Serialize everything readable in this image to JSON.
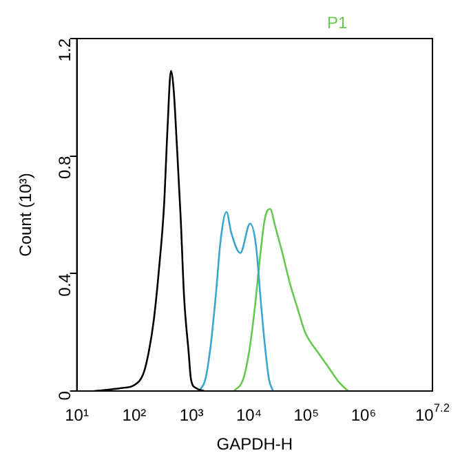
{
  "chart_data": {
    "type": "line",
    "xlabel": "GAPDH-H",
    "ylabel": "Count (10³)",
    "log": "x",
    "grid": false,
    "legend": "top",
    "marker": "none",
    "line_style": "solid",
    "xlim": [
      10,
      15848932
    ],
    "xticks": [
      {
        "value": 10,
        "label": "10¹"
      },
      {
        "value": 100,
        "label": "10²"
      },
      {
        "value": 1000,
        "label": "10³"
      },
      {
        "value": 10000,
        "label": "10⁴"
      },
      {
        "value": 100000,
        "label": "10⁵"
      },
      {
        "value": 1000000,
        "label": "10⁶"
      },
      {
        "value": 15848932,
        "label": "10$^{7.2}$"
      }
    ],
    "ylim": [
      0,
      1.2
    ],
    "yticks": [
      {
        "value": 0,
        "label": "0"
      },
      {
        "value": 0.4,
        "label": "0.4"
      },
      {
        "value": 0.8,
        "label": "0.8"
      },
      {
        "value": 1.2,
        "label": "1.2"
      }
    ],
    "series": [
      {
        "color": "#000000",
        "x": [
          20,
          59,
          100,
          145,
          178,
          219,
          269,
          331,
          380,
          437,
          490,
          550,
          646,
          741,
          891,
          977,
          1200,
          1660
        ],
        "values": [
          0,
          0.01,
          0.02,
          0.06,
          0.13,
          0.24,
          0.41,
          0.63,
          0.89,
          1.09,
          1.02,
          0.85,
          0.59,
          0.32,
          0.13,
          0.04,
          0.01,
          0
        ]
      },
      {
        "color": "#3aa6d0",
        "x": [
          1350,
          1740,
          2140,
          2630,
          3240,
          4070,
          4900,
          7080,
          10500,
          13200,
          16200,
          19100,
          22400,
          26300
        ],
        "values": [
          0,
          0.04,
          0.15,
          0.32,
          0.52,
          0.61,
          0.54,
          0.47,
          0.57,
          0.5,
          0.3,
          0.15,
          0.04,
          0
        ]
      },
      {
        "name": "P1",
        "color": "#66c84f",
        "x": [
          5500,
          7940,
          10200,
          12600,
          15500,
          19100,
          23400,
          28800,
          37200,
          51300,
          70800,
          95500,
          162000,
          245000,
          372000,
          537000
        ],
        "values": [
          0,
          0.04,
          0.14,
          0.28,
          0.45,
          0.59,
          0.62,
          0.56,
          0.48,
          0.37,
          0.28,
          0.2,
          0.13,
          0.08,
          0.03,
          0
        ]
      }
    ]
  }
}
